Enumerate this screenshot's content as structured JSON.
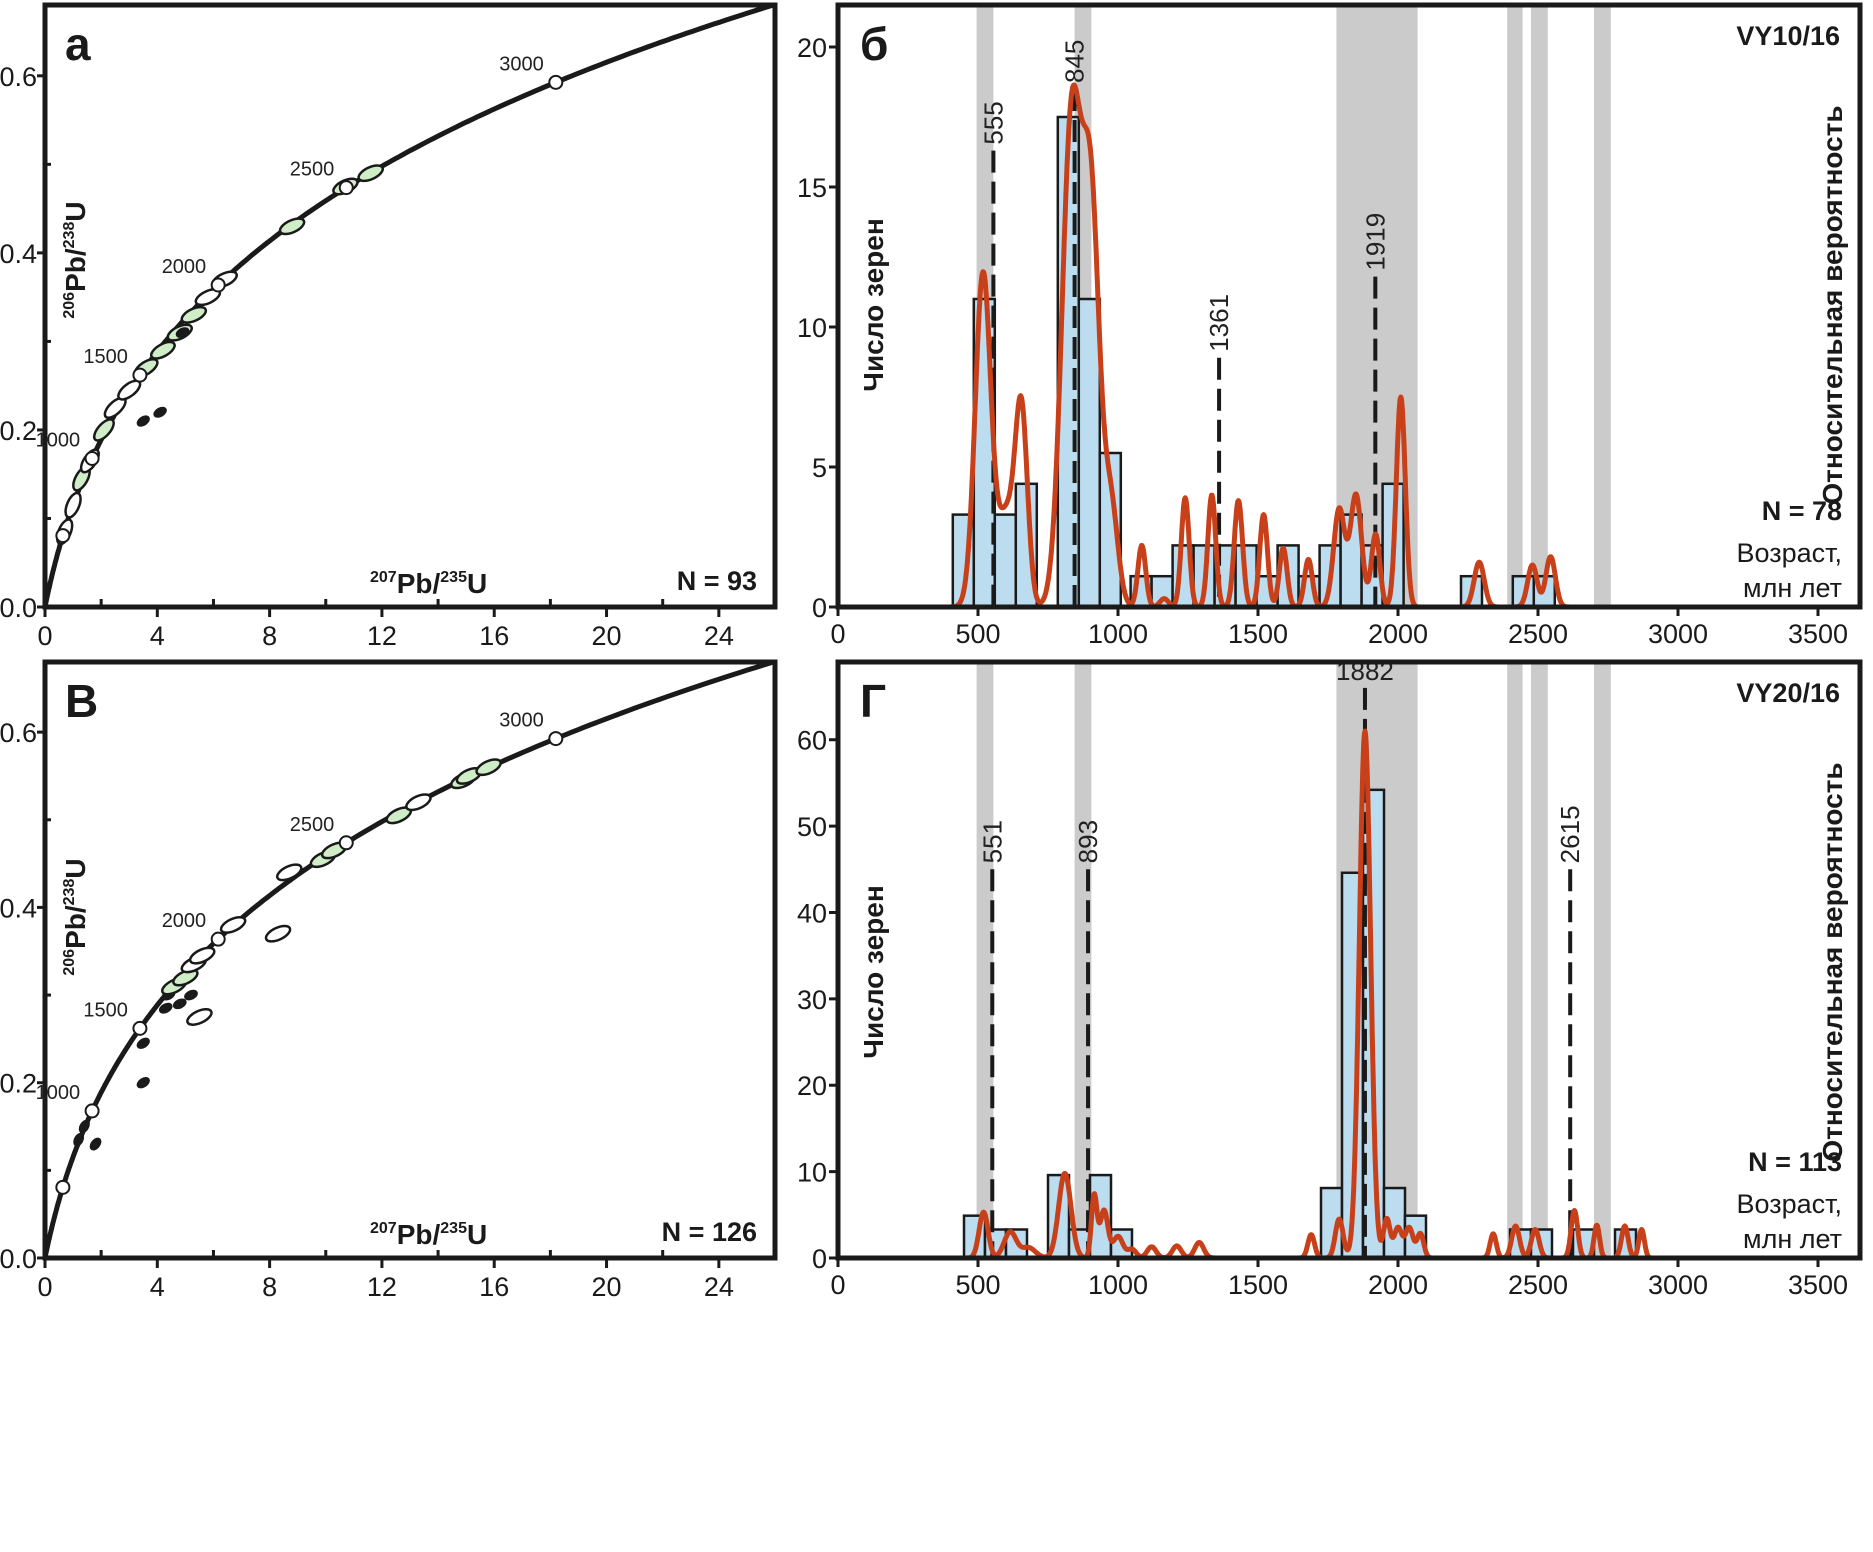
{
  "chart_data": [
    {
      "id": "a",
      "type": "scatter",
      "panel_letter": "а",
      "title": "",
      "xlabel": {
        "iso": "207",
        "el": "Pb/",
        "iso2": "235",
        "el2": "U"
      },
      "ylabel": {
        "iso": "206",
        "el": "Pb/",
        "iso2": "238",
        "el2": "U"
      },
      "xlim": [
        0,
        26
      ],
      "ylim": [
        0,
        0.68
      ],
      "x_ticks": [
        0,
        4,
        8,
        12,
        16,
        20,
        24
      ],
      "y_ticks": [
        0.0,
        0.2,
        0.4,
        0.6
      ],
      "x_tick_labels": [
        "0",
        "4",
        "8",
        "12",
        "16",
        "20",
        "24"
      ],
      "y_tick_labels": [
        "0.0",
        "0.2",
        "0.4",
        "0.6"
      ],
      "n_label": "N = 93",
      "concordia_ages": [
        500,
        1000,
        1500,
        2000,
        2500,
        3000
      ],
      "concordia_age_labels": [
        "1000",
        "1500",
        "2000",
        "2500",
        "3000"
      ],
      "ellipses": [
        {
          "x": 0.7,
          "y": 0.085,
          "fill": "none"
        },
        {
          "x": 1.0,
          "y": 0.115,
          "fill": "none"
        },
        {
          "x": 1.3,
          "y": 0.145,
          "fill": "green"
        },
        {
          "x": 1.6,
          "y": 0.165,
          "fill": "none"
        },
        {
          "x": 2.1,
          "y": 0.2,
          "fill": "green"
        },
        {
          "x": 2.5,
          "y": 0.225,
          "fill": "none"
        },
        {
          "x": 3.0,
          "y": 0.245,
          "fill": "none"
        },
        {
          "x": 3.6,
          "y": 0.27,
          "fill": "green"
        },
        {
          "x": 4.2,
          "y": 0.29,
          "fill": "green"
        },
        {
          "x": 4.8,
          "y": 0.31,
          "fill": "green"
        },
        {
          "x": 5.3,
          "y": 0.33,
          "fill": "green"
        },
        {
          "x": 5.8,
          "y": 0.35,
          "fill": "none"
        },
        {
          "x": 6.4,
          "y": 0.37,
          "fill": "none"
        },
        {
          "x": 8.8,
          "y": 0.43,
          "fill": "green"
        },
        {
          "x": 10.7,
          "y": 0.475,
          "fill": "green"
        },
        {
          "x": 11.6,
          "y": 0.49,
          "fill": "green"
        },
        {
          "x": 3.5,
          "y": 0.21,
          "fill": "black"
        },
        {
          "x": 4.1,
          "y": 0.22,
          "fill": "black"
        },
        {
          "x": 4.9,
          "y": 0.31,
          "fill": "black"
        }
      ]
    },
    {
      "id": "b",
      "type": "bar",
      "panel_letter": "б",
      "sample": "VY10/16",
      "ylabel": "Число зерен",
      "y2label": "Относительная вероятность",
      "xlabel_line1": "Возраст,",
      "xlabel_line2": "млн лет",
      "n_label": "N = 78",
      "xlim": [
        0,
        3650
      ],
      "ylim": [
        0,
        21.5
      ],
      "x_ticks": [
        0,
        500,
        1000,
        1500,
        2000,
        2500,
        3000,
        3500
      ],
      "x_tick_labels": [
        "0",
        "500",
        "1000",
        "1500",
        "2000",
        "2500",
        "3000",
        "3500"
      ],
      "y_ticks": [
        0,
        5,
        10,
        15,
        20
      ],
      "y_tick_labels": [
        "0",
        "5",
        "10",
        "15",
        "20"
      ],
      "bin_width": 75,
      "bins": [
        {
          "x0": 410,
          "count": 3.3
        },
        {
          "x0": 485,
          "count": 11
        },
        {
          "x0": 560,
          "count": 3.3
        },
        {
          "x0": 635,
          "count": 4.4
        },
        {
          "x0": 785,
          "count": 17.5
        },
        {
          "x0": 860,
          "count": 11
        },
        {
          "x0": 935,
          "count": 5.5
        },
        {
          "x0": 1045,
          "count": 1.1
        },
        {
          "x0": 1120,
          "count": 1.1
        },
        {
          "x0": 1195,
          "count": 2.2
        },
        {
          "x0": 1270,
          "count": 2.2
        },
        {
          "x0": 1345,
          "count": 2.2
        },
        {
          "x0": 1420,
          "count": 2.2
        },
        {
          "x0": 1495,
          "count": 1.1
        },
        {
          "x0": 1570,
          "count": 2.2
        },
        {
          "x0": 1645,
          "count": 1.1
        },
        {
          "x0": 1720,
          "count": 2.2
        },
        {
          "x0": 1795,
          "count": 3.3
        },
        {
          "x0": 1870,
          "count": 2.2
        },
        {
          "x0": 1945,
          "count": 4.4
        },
        {
          "x0": 2225,
          "count": 1.1
        },
        {
          "x0": 2410,
          "count": 1.1
        },
        {
          "x0": 2485,
          "count": 1.1
        }
      ],
      "kde_peaks": [
        {
          "x": 518,
          "h": 11.9,
          "w": 28
        },
        {
          "x": 600,
          "h": 3.2,
          "w": 30
        },
        {
          "x": 655,
          "h": 6.9,
          "w": 22
        },
        {
          "x": 835,
          "h": 17.5,
          "w": 35
        },
        {
          "x": 905,
          "h": 13.5,
          "w": 30
        },
        {
          "x": 975,
          "h": 3.5,
          "w": 25
        },
        {
          "x": 1085,
          "h": 2.2,
          "w": 14
        },
        {
          "x": 1165,
          "h": 0.3,
          "w": 15
        },
        {
          "x": 1240,
          "h": 3.9,
          "w": 14
        },
        {
          "x": 1335,
          "h": 4.0,
          "w": 14
        },
        {
          "x": 1430,
          "h": 3.8,
          "w": 15
        },
        {
          "x": 1520,
          "h": 3.3,
          "w": 14
        },
        {
          "x": 1590,
          "h": 2.1,
          "w": 14
        },
        {
          "x": 1680,
          "h": 1.7,
          "w": 14
        },
        {
          "x": 1790,
          "h": 3.5,
          "w": 20
        },
        {
          "x": 1850,
          "h": 4.0,
          "w": 20
        },
        {
          "x": 1920,
          "h": 2.6,
          "w": 15
        },
        {
          "x": 2010,
          "h": 7.5,
          "w": 16
        },
        {
          "x": 2290,
          "h": 1.6,
          "w": 18
        },
        {
          "x": 2480,
          "h": 1.5,
          "w": 17
        },
        {
          "x": 2545,
          "h": 1.8,
          "w": 17
        }
      ],
      "kde_range": [
        0,
        2780
      ],
      "shaded_bands": [
        [
          495,
          555
        ],
        [
          845,
          905
        ],
        [
          1780,
          2070
        ],
        [
          2390,
          2445
        ],
        [
          2475,
          2535
        ],
        [
          2700,
          2760
        ]
      ],
      "peak_markers": [
        {
          "age": 555,
          "label": "555",
          "y_top": 16.3
        },
        {
          "age": 845,
          "label": "845",
          "y_top": 18.5
        },
        {
          "age": 1361,
          "label": "1361",
          "y_top": 8.9
        },
        {
          "age": 1919,
          "label": "1919",
          "y_top": 11.8
        }
      ]
    },
    {
      "id": "v",
      "type": "scatter",
      "panel_letter": "В",
      "xlabel": {
        "iso": "207",
        "el": "Pb/",
        "iso2": "235",
        "el2": "U"
      },
      "ylabel": {
        "iso": "206",
        "el": "Pb/",
        "iso2": "238",
        "el2": "U"
      },
      "xlim": [
        0,
        26
      ],
      "ylim": [
        0,
        0.68
      ],
      "x_ticks": [
        0,
        4,
        8,
        12,
        16,
        20,
        24
      ],
      "y_ticks": [
        0.0,
        0.2,
        0.4,
        0.6
      ],
      "x_tick_labels": [
        "0",
        "4",
        "8",
        "12",
        "16",
        "20",
        "24"
      ],
      "y_tick_labels": [
        "0.0",
        "0.2",
        "0.4",
        "0.6"
      ],
      "n_label": "N = 126",
      "concordia_ages": [
        500,
        1000,
        1500,
        2000,
        2500,
        3000
      ],
      "concordia_age_labels": [
        "1000",
        "1500",
        "2000",
        "2500",
        "3000"
      ],
      "ellipses": [
        {
          "x": 1.2,
          "y": 0.135,
          "fill": "black"
        },
        {
          "x": 1.4,
          "y": 0.15,
          "fill": "black"
        },
        {
          "x": 1.8,
          "y": 0.13,
          "fill": "black"
        },
        {
          "x": 3.5,
          "y": 0.2,
          "fill": "black"
        },
        {
          "x": 3.5,
          "y": 0.245,
          "fill": "black"
        },
        {
          "x": 4.4,
          "y": 0.3,
          "fill": "black"
        },
        {
          "x": 4.6,
          "y": 0.31,
          "fill": "green"
        },
        {
          "x": 5.0,
          "y": 0.32,
          "fill": "green"
        },
        {
          "x": 5.3,
          "y": 0.335,
          "fill": "none"
        },
        {
          "x": 5.6,
          "y": 0.345,
          "fill": "none"
        },
        {
          "x": 4.8,
          "y": 0.29,
          "fill": "black"
        },
        {
          "x": 5.2,
          "y": 0.3,
          "fill": "black"
        },
        {
          "x": 5.5,
          "y": 0.275,
          "fill": "none"
        },
        {
          "x": 4.3,
          "y": 0.285,
          "fill": "black"
        },
        {
          "x": 6.7,
          "y": 0.38,
          "fill": "none"
        },
        {
          "x": 8.3,
          "y": 0.37,
          "fill": "none"
        },
        {
          "x": 8.7,
          "y": 0.44,
          "fill": "none"
        },
        {
          "x": 9.9,
          "y": 0.455,
          "fill": "green"
        },
        {
          "x": 10.3,
          "y": 0.465,
          "fill": "green"
        },
        {
          "x": 12.6,
          "y": 0.505,
          "fill": "green"
        },
        {
          "x": 13.3,
          "y": 0.52,
          "fill": "none"
        },
        {
          "x": 14.9,
          "y": 0.545,
          "fill": "green"
        },
        {
          "x": 15.1,
          "y": 0.55,
          "fill": "green"
        },
        {
          "x": 15.8,
          "y": 0.56,
          "fill": "green"
        }
      ]
    },
    {
      "id": "g",
      "type": "bar",
      "panel_letter": "Г",
      "sample": "VY20/16",
      "ylabel": "Число зерен",
      "y2label": "Относительная вероятность",
      "xlabel_line1": "Возраст,",
      "xlabel_line2": "млн лет",
      "n_label": "N = 113",
      "xlim": [
        0,
        3650
      ],
      "ylim": [
        0,
        69
      ],
      "x_ticks": [
        0,
        500,
        1000,
        1500,
        2000,
        2500,
        3000,
        3500
      ],
      "x_tick_labels": [
        "0",
        "500",
        "1000",
        "1500",
        "2000",
        "2500",
        "3000",
        "3500"
      ],
      "y_ticks": [
        0,
        10,
        20,
        30,
        40,
        50,
        60
      ],
      "y_tick_labels": [
        "0",
        "10",
        "20",
        "30",
        "40",
        "50",
        "60"
      ],
      "bin_width": 75,
      "bins": [
        {
          "x0": 450,
          "count": 4.9
        },
        {
          "x0": 525,
          "count": 3.3
        },
        {
          "x0": 600,
          "count": 3.3
        },
        {
          "x0": 750,
          "count": 9.6
        },
        {
          "x0": 825,
          "count": 3.3
        },
        {
          "x0": 900,
          "count": 9.6
        },
        {
          "x0": 975,
          "count": 3.3
        },
        {
          "x0": 1725,
          "count": 8.1
        },
        {
          "x0": 1800,
          "count": 44.6
        },
        {
          "x0": 1875,
          "count": 54.2
        },
        {
          "x0": 1950,
          "count": 8.1
        },
        {
          "x0": 2025,
          "count": 4.9
        },
        {
          "x0": 2400,
          "count": 3.3
        },
        {
          "x0": 2475,
          "count": 3.3
        },
        {
          "x0": 2625,
          "count": 3.3
        },
        {
          "x0": 2775,
          "count": 3.3
        }
      ],
      "kde_peaks": [
        {
          "x": 520,
          "h": 5.3,
          "w": 16
        },
        {
          "x": 615,
          "h": 3.0,
          "w": 22
        },
        {
          "x": 680,
          "h": 1.2,
          "w": 25
        },
        {
          "x": 810,
          "h": 9.8,
          "w": 22
        },
        {
          "x": 915,
          "h": 7.2,
          "w": 10
        },
        {
          "x": 950,
          "h": 5.5,
          "w": 14
        },
        {
          "x": 1000,
          "h": 2.5,
          "w": 18
        },
        {
          "x": 1050,
          "h": 1.0,
          "w": 15
        },
        {
          "x": 1120,
          "h": 1.3,
          "w": 16
        },
        {
          "x": 1210,
          "h": 1.4,
          "w": 16
        },
        {
          "x": 1290,
          "h": 1.8,
          "w": 16
        },
        {
          "x": 1690,
          "h": 2.7,
          "w": 12
        },
        {
          "x": 1790,
          "h": 4.5,
          "w": 14
        },
        {
          "x": 1882,
          "h": 61,
          "w": 20
        },
        {
          "x": 1960,
          "h": 4.5,
          "w": 12
        },
        {
          "x": 2000,
          "h": 3.5,
          "w": 14
        },
        {
          "x": 2040,
          "h": 3.5,
          "w": 14
        },
        {
          "x": 2080,
          "h": 2.8,
          "w": 12
        },
        {
          "x": 2340,
          "h": 2.8,
          "w": 11
        },
        {
          "x": 2420,
          "h": 3.7,
          "w": 14
        },
        {
          "x": 2490,
          "h": 3.3,
          "w": 14
        },
        {
          "x": 2630,
          "h": 5.5,
          "w": 12
        },
        {
          "x": 2710,
          "h": 3.8,
          "w": 10
        },
        {
          "x": 2810,
          "h": 3.7,
          "w": 12
        },
        {
          "x": 2870,
          "h": 3.3,
          "w": 10
        }
      ],
      "kde_range": [
        0,
        3000
      ],
      "shaded_bands": [
        [
          495,
          555
        ],
        [
          845,
          905
        ],
        [
          1780,
          2070
        ],
        [
          2390,
          2445
        ],
        [
          2475,
          2535
        ],
        [
          2700,
          2760
        ]
      ],
      "peak_markers": [
        {
          "age": 551,
          "label": "551",
          "y_top": 45
        },
        {
          "age": 893,
          "label": "893",
          "y_top": 45
        },
        {
          "age": 1882,
          "label": "1882",
          "y_top": 66
        },
        {
          "age": 2615,
          "label": "2615",
          "y_top": 45
        }
      ]
    }
  ]
}
